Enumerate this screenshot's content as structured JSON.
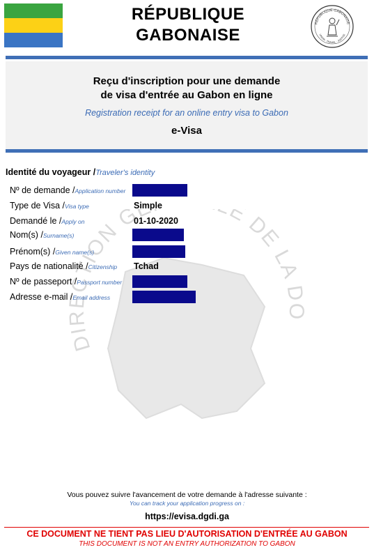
{
  "header": {
    "country_line1": "RÉPUBLIQUE",
    "country_line2": "GABONAISE",
    "flag_colors": [
      "#3aa540",
      "#fcd116",
      "#3a75c4"
    ],
    "seal_text_top": "RÉPUBLIQUE GABONAISE",
    "seal_text_bottom": "UNION · TRAVAIL · JUSTICE"
  },
  "receipt": {
    "title_fr_line1": "Reçu d'inscription pour une demande",
    "title_fr_line2": "de visa d'entrée au Gabon en ligne",
    "title_en": "Registration receipt for an online entry visa to Gabon",
    "product": "e-Visa"
  },
  "section": {
    "title_fr": "Identité du voyageur /",
    "title_en": "Traveler's identity"
  },
  "fields": [
    {
      "label_fr": "Nº de demande /",
      "label_en": "Application number",
      "value": "",
      "redacted": true
    },
    {
      "label_fr": "Type de Visa /",
      "label_en": "Visa type",
      "value": "Simple",
      "redacted": false
    },
    {
      "label_fr": "Demandé le /",
      "label_en": "Apply on",
      "value": "01-10-2020",
      "redacted": false
    },
    {
      "label_fr": "Nom(s) /",
      "label_en": "Surname(s)",
      "value": "",
      "redacted": true
    },
    {
      "label_fr": "Prénom(s) /",
      "label_en": "Given name(s)",
      "value": "",
      "redacted": true
    },
    {
      "label_fr": "Pays de nationalité /",
      "label_en": "Citizenship",
      "value": "Tchad",
      "redacted": false
    },
    {
      "label_fr": "Nº de passeport /",
      "label_en": "Passport number",
      "value": "",
      "redacted": true
    },
    {
      "label_fr": "Adresse e-mail /",
      "label_en": "Email address",
      "value": "",
      "redacted": true
    }
  ],
  "watermark": {
    "text": "DIRECTION GENERALE DE LA DOCUMENTATION ET DE L'IMMIGRATION"
  },
  "footer": {
    "track_fr": "Vous pouvez suivre l'avancement de votre demande à l'adresse suivante :",
    "track_en": "You can track your application progress on :",
    "url": "https://evisa.dgdi.ga",
    "warning_fr": "CE DOCUMENT NE TIENT PAS LIEU D'AUTORISATION D'ENTRÉE AU GABON",
    "warning_en": "THIS DOCUMENT IS NOT AN ENTRY AUTHORIZATION TO GABON"
  },
  "colors": {
    "rule_blue": "#3f6fb6",
    "accent_blue": "#3b6bb5",
    "redaction": "#0a0a8c",
    "warning_red": "#e00000"
  }
}
